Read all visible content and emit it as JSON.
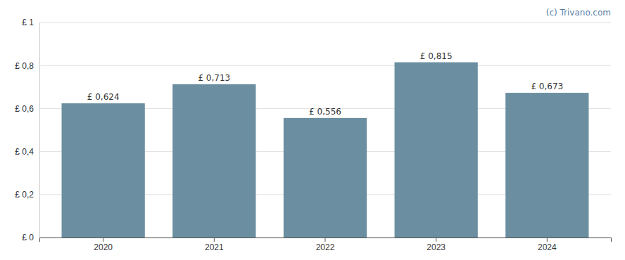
{
  "chart_data": {
    "type": "bar",
    "categories": [
      "2020",
      "2021",
      "2022",
      "2023",
      "2024"
    ],
    "values": [
      0.624,
      0.713,
      0.556,
      0.815,
      0.673
    ],
    "value_labels": [
      "£ 0,624",
      "£ 0,713",
      "£ 0,556",
      "£ 0,815",
      "£ 0,673"
    ],
    "data_labels": true,
    "color": "#6b8fa0",
    "ylim": [
      0,
      1.0
    ],
    "yticks": [
      {
        "value": 0,
        "label": "£ 0"
      },
      {
        "value": 0.2,
        "label": "£ 0,2"
      },
      {
        "value": 0.4,
        "label": "£ 0,4"
      },
      {
        "value": 0.6,
        "label": "£ 0,6"
      },
      {
        "value": 0.8,
        "label": "£ 0,8"
      },
      {
        "value": 1.0,
        "label": "£ 1"
      }
    ],
    "grid": true,
    "annotation": "(c) Trivano.com"
  }
}
